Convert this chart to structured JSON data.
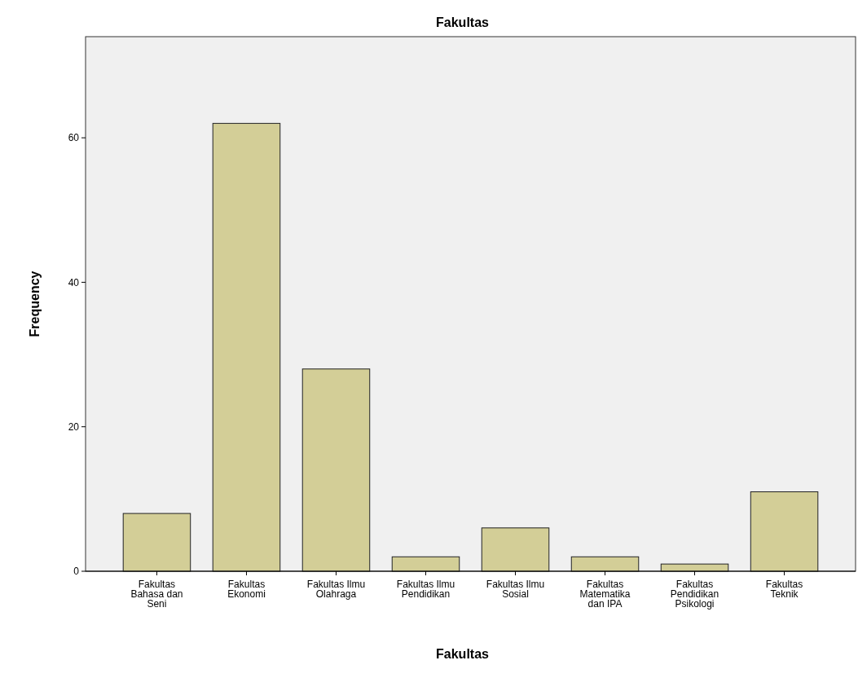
{
  "chart_data": {
    "type": "bar",
    "title": "Fakultas",
    "xlabel": "Fakultas",
    "ylabel": "Frequency",
    "categories": [
      "Fakultas Bahasa dan Seni",
      "Fakultas Ekonomi",
      "Fakultas Ilmu Olahraga",
      "Fakultas Ilmu Pendidikan",
      "Fakultas Ilmu Sosial",
      "Fakultas Matematika dan IPA",
      "Fakultas Pendidikan Psikologi",
      "Fakultas Teknik"
    ],
    "values": [
      8,
      62,
      28,
      2,
      6,
      2,
      1,
      11
    ],
    "color": "#d3ce97",
    "ylim": [
      0,
      74
    ],
    "yticks": [
      0,
      20,
      40,
      60
    ],
    "grid": false
  }
}
